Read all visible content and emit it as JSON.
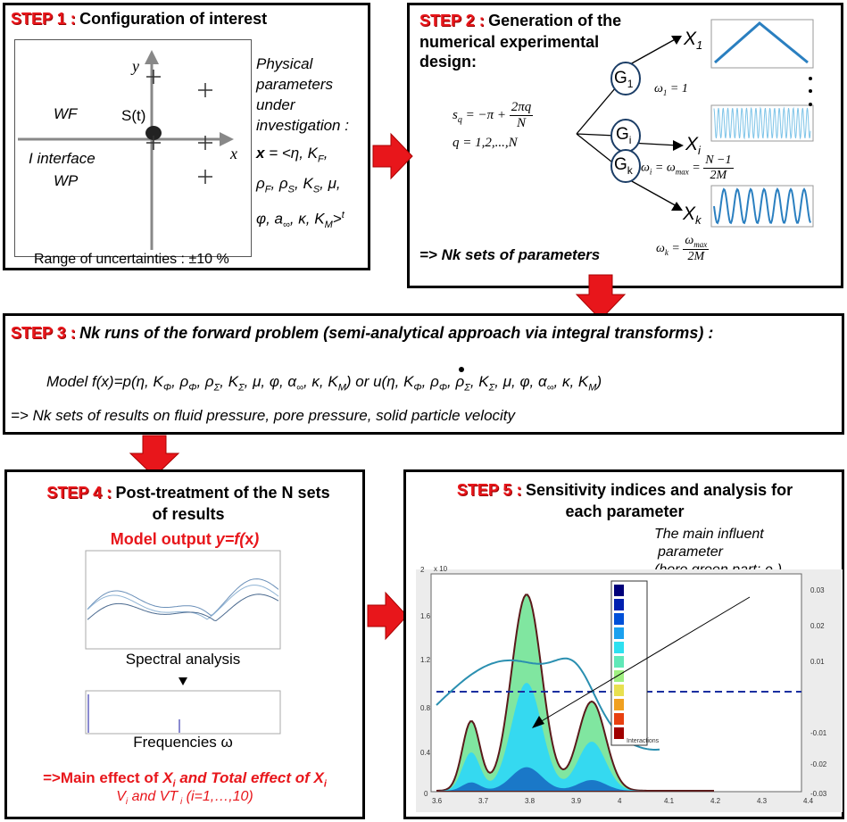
{
  "step1": {
    "label": "STEP 1 :",
    "title": "Configuration of interest",
    "axis_y": "y",
    "axis_x": "x",
    "source": "S(t)",
    "wf": "WF",
    "interface": "I interface",
    "wp": "WP",
    "params_heading": [
      "Physical",
      "parameters",
      "under",
      "investigation :"
    ],
    "params_formula_l1": "x = <η, K",
    "params_formula_l2": "ρ",
    "params_formula_l3": "φ, a",
    "range": "Range of uncertainties : ±10 %"
  },
  "step2": {
    "label": "STEP 2 :",
    "title_l1": "Generation of the",
    "title_l2": "numerical experimental",
    "title_l3": "design:",
    "sq_formula": "s",
    "q_formula": "q = 1,2,...,N",
    "g1": "G",
    "gi": "G",
    "gk": "G",
    "x1": "X",
    "xi": "X",
    "xk": "X",
    "omega1": "ω",
    "omegai": "ω",
    "omegak": "ω",
    "result": "=> Nk sets of parameters"
  },
  "step3": {
    "label": "STEP 3 :",
    "title": "Nk runs of the forward problem (semi-analytical approach via integral transforms) :",
    "model_line": "Model f(x)=p(η, K",
    "result": "=> Nk sets of results on fluid pressure, pore pressure, solid particle velocity"
  },
  "step4": {
    "label": "STEP 4 :",
    "title_l1": "Post-treatment of the N sets",
    "title_l2": "of results",
    "model_output": "Model output y=f(x)",
    "spectral": "Spectral analysis",
    "frequencies": "Frequencies ω",
    "effects": "=>Main effect of X",
    "vline": "V"
  },
  "step5": {
    "label": "STEP 5 :",
    "title_l1": "Sensitivity indices and analysis for",
    "title_l2": "each parameter",
    "annot_l1": "The main influent",
    "annot_l2": "parameter",
    "annot_l3": "(here green part: ρ",
    "legend_interactions": "Interactions",
    "x_ticks": [
      "3.6",
      "3.7",
      "3.8",
      "3.9",
      "4",
      "4.1",
      "4.2",
      "4.3",
      "4.4"
    ],
    "left_ticks": [
      "2",
      "1.6",
      "1.2",
      "0.8",
      "0.4",
      "0"
    ],
    "right_ticks": [
      "0.03",
      "0.02",
      "0.01",
      "-0.01",
      "-0.02",
      "-0.03"
    ],
    "exp_label": "x 10"
  },
  "colors": {
    "red": "#e8161b",
    "blue": "#2a6fb0",
    "wave": "#1e7fc0"
  }
}
